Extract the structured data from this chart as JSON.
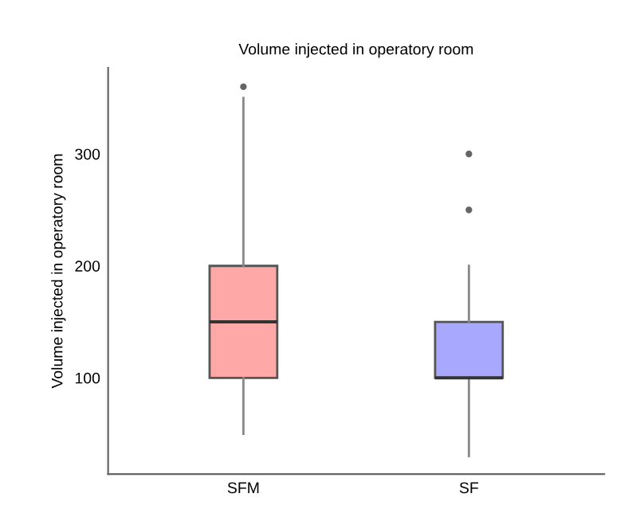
{
  "chart_data": {
    "type": "box",
    "title": "Volume injected in operatory room",
    "ylabel": "Volume injected in operatory room",
    "categories": [
      "SFM",
      "SF"
    ],
    "boxes": [
      {
        "low": 50,
        "q1": 100,
        "median": 150,
        "q3": 200,
        "high": 350,
        "outliers": [
          360
        ]
      },
      {
        "low": 30,
        "q1": 100,
        "median": 100,
        "q3": 150,
        "high": 200,
        "outliers": [
          250,
          300
        ]
      }
    ],
    "colors": [
      "#ffa8a8",
      "#a8a8ff"
    ],
    "ylim": [
      14,
      377
    ],
    "yticks": [
      100,
      200,
      300
    ],
    "grid": false,
    "legend": false
  }
}
